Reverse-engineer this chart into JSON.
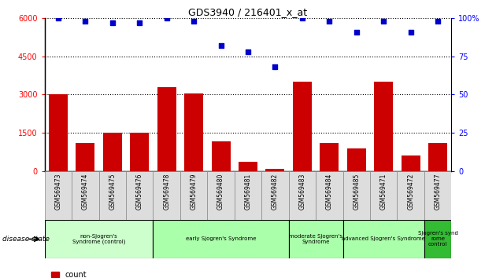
{
  "title": "GDS3940 / 216401_x_at",
  "samples": [
    "GSM569473",
    "GSM569474",
    "GSM569475",
    "GSM569476",
    "GSM569478",
    "GSM569479",
    "GSM569480",
    "GSM569481",
    "GSM569482",
    "GSM569483",
    "GSM569484",
    "GSM569485",
    "GSM569471",
    "GSM569472",
    "GSM569477"
  ],
  "counts": [
    3000,
    1100,
    1500,
    1500,
    3300,
    3050,
    1150,
    350,
    80,
    3500,
    1100,
    900,
    3500,
    600,
    1100
  ],
  "percentiles": [
    100,
    98,
    97,
    97,
    100,
    98,
    82,
    78,
    68,
    100,
    98,
    91,
    98,
    91,
    98
  ],
  "bar_color": "#cc0000",
  "dot_color": "#0000cc",
  "ylim_left": [
    0,
    6000
  ],
  "ylim_right": [
    0,
    100
  ],
  "yticks_left": [
    0,
    1500,
    3000,
    4500,
    6000
  ],
  "yticks_right": [
    0,
    25,
    50,
    75,
    100
  ],
  "group_spans": [
    {
      "start": 0,
      "end": 3,
      "label": "non-Sjogren's\nSyndrome (control)",
      "color": "#ccffcc"
    },
    {
      "start": 4,
      "end": 8,
      "label": "early Sjogren's Syndrome",
      "color": "#aaffaa"
    },
    {
      "start": 9,
      "end": 10,
      "label": "moderate Sjogren's\nSyndrome",
      "color": "#aaffaa"
    },
    {
      "start": 11,
      "end": 13,
      "label": "advanced Sjogren's Syndrome",
      "color": "#aaffaa"
    },
    {
      "start": 14,
      "end": 14,
      "label": "Sjogren's synd\nrome\ncontrol",
      "color": "#33bb33"
    }
  ],
  "legend_count_color": "#cc0000",
  "legend_pct_color": "#0000cc"
}
